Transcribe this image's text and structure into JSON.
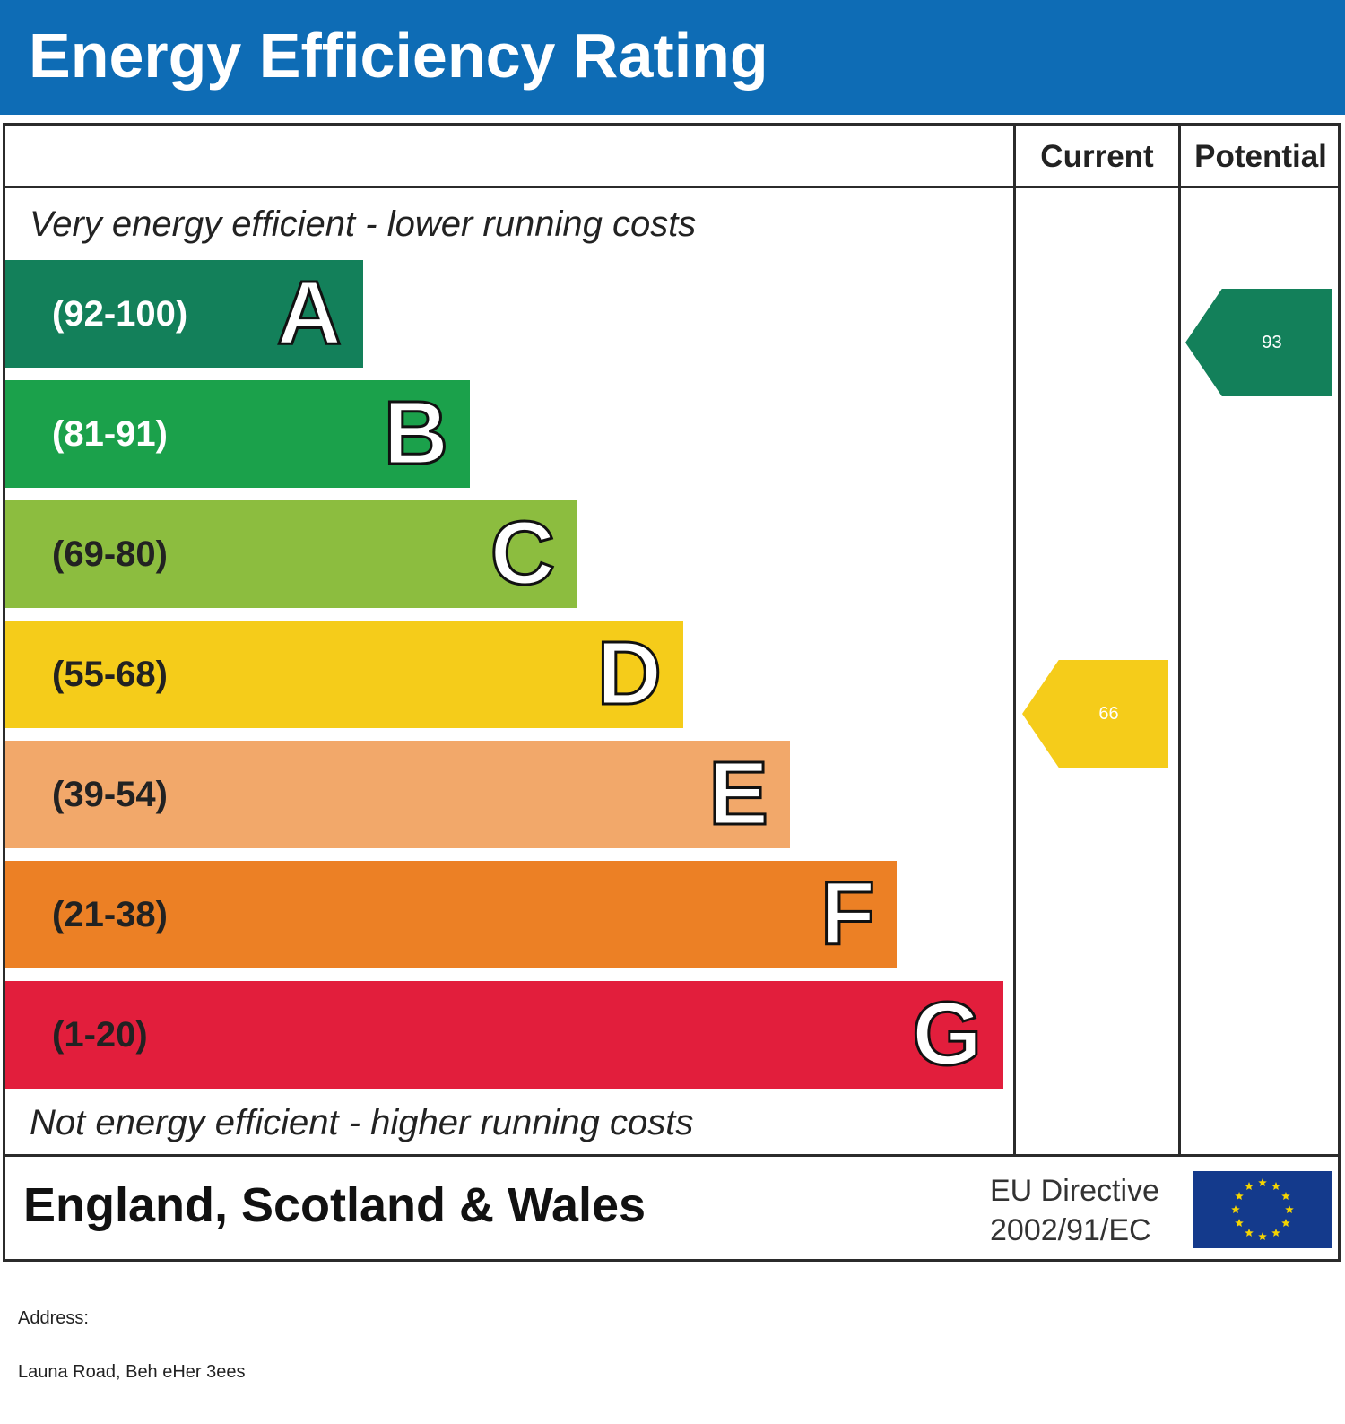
{
  "header": {
    "title": "Energy Efficiency Rating"
  },
  "columns": {
    "current": "Current",
    "potential": "Potential"
  },
  "notes": {
    "top": "Very energy efficient - lower running costs",
    "bottom": "Not energy efficient - higher running costs"
  },
  "chart_data": {
    "type": "bar",
    "title": "Energy Efficiency Rating",
    "categories": [
      "A",
      "B",
      "C",
      "D",
      "E",
      "F",
      "G"
    ],
    "bands": [
      {
        "letter": "A",
        "range": "(92-100)",
        "min": 92,
        "max": 100,
        "color": "#13805a",
        "range_color": "#ffffff"
      },
      {
        "letter": "B",
        "range": "(81-91)",
        "min": 81,
        "max": 91,
        "color": "#1ba14b",
        "range_color": "#ffffff"
      },
      {
        "letter": "C",
        "range": "(69-80)",
        "min": 69,
        "max": 80,
        "color": "#8cbd3f",
        "range_color": "#222222"
      },
      {
        "letter": "D",
        "range": "(55-68)",
        "min": 55,
        "max": 68,
        "color": "#f5cc1a",
        "range_color": "#222222"
      },
      {
        "letter": "E",
        "range": "(39-54)",
        "min": 39,
        "max": 54,
        "color": "#f2a86a",
        "range_color": "#222222"
      },
      {
        "letter": "F",
        "range": "(21-38)",
        "min": 21,
        "max": 38,
        "color": "#ec8025",
        "range_color": "#222222"
      },
      {
        "letter": "G",
        "range": "(1-20)",
        "min": 1,
        "max": 20,
        "color": "#e21e3c",
        "range_color": "#222222"
      }
    ],
    "current": {
      "value": 66,
      "label": "66",
      "band": "D",
      "color": "#f5cc1a"
    },
    "potential": {
      "value": 93,
      "label": "93",
      "band": "A",
      "color": "#13805a"
    }
  },
  "footer": {
    "region": "England, Scotland & Wales",
    "directive_line1": "EU Directive",
    "directive_line2": "2002/91/EC",
    "flag_icon": "eu-flag-icon",
    "flag_color": "#143a8c",
    "star_color": "#f5d400"
  },
  "address": {
    "label": "Address:",
    "line": "Launa Road, Beh eHer  3ees"
  }
}
